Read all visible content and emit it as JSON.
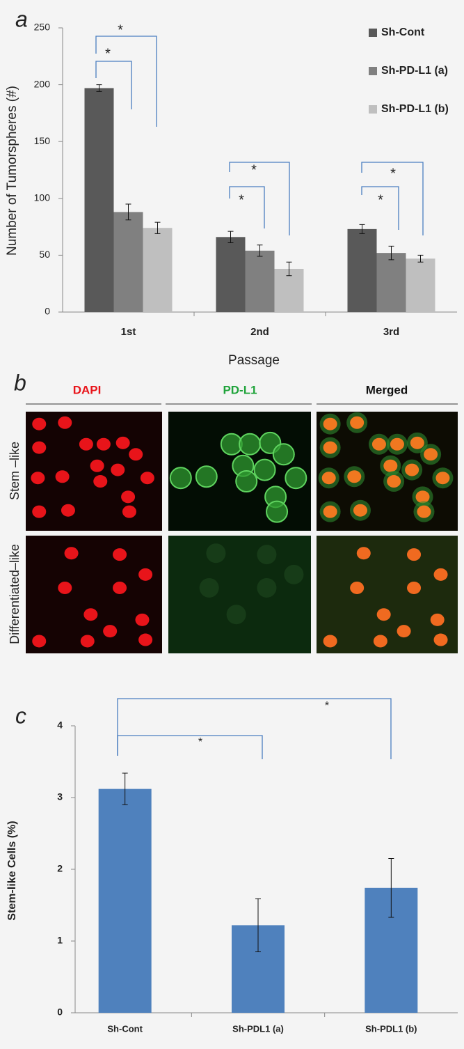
{
  "chart_data": [
    {
      "type": "bar",
      "label": "a",
      "ylabel": "Number of Tumorspheres (#)",
      "xlabel": "Passage",
      "categories": [
        "1st",
        "2nd",
        "3rd"
      ],
      "series": [
        {
          "name": "Sh-Cont",
          "color": "#595959",
          "values": [
            197,
            66,
            73
          ],
          "errors": [
            3,
            5,
            4
          ]
        },
        {
          "name": "Sh-PD-L1 (a)",
          "color": "#808080",
          "values": [
            88,
            54,
            52
          ],
          "errors": [
            7,
            5,
            6
          ]
        },
        {
          "name": "Sh-PD-L1 (b)",
          "color": "#bfbfbf",
          "values": [
            74,
            38,
            47
          ],
          "errors": [
            5,
            6,
            3
          ]
        }
      ],
      "ylim": [
        0,
        250
      ],
      "yticks": [
        0,
        50,
        100,
        150,
        200,
        250
      ],
      "annotations": [
        "*",
        "*",
        "*",
        "*",
        "*",
        "*"
      ]
    },
    {
      "type": "bar",
      "label": "c",
      "ylabel": "Stem-like Cells (%)",
      "categories": [
        "Sh-Cont",
        "Sh-PDL1 (a)",
        "Sh-PDL1 (b)"
      ],
      "color": "#4f81bd",
      "values": [
        3.12,
        1.22,
        1.74
      ],
      "errors": [
        0.22,
        0.37,
        0.41
      ],
      "ylim": [
        0,
        4
      ],
      "yticks": [
        0,
        1,
        2,
        3,
        4
      ],
      "annotations": [
        "*",
        "*"
      ]
    }
  ],
  "micrograph": {
    "label": "b",
    "columns": [
      "DAPI",
      "PD-L1",
      "Merged"
    ],
    "rows": [
      "Stem –like",
      "Differentiated–like"
    ]
  }
}
